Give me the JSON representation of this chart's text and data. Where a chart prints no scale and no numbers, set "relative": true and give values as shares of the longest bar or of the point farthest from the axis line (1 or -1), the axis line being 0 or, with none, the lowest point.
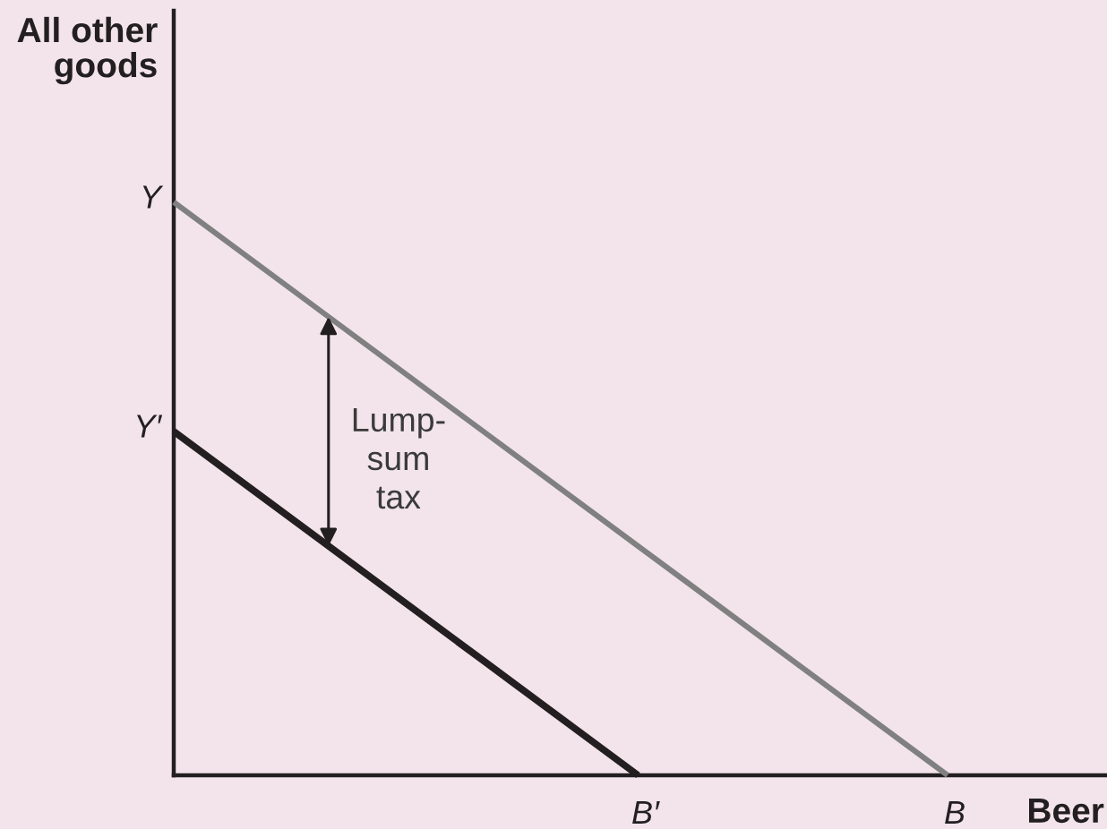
{
  "chart_data": {
    "type": "line",
    "relative": true,
    "xlabel": "Beer",
    "ylabel": "All other\ngoods",
    "line_style": "solid",
    "categories": [
      null,
      null,
      null,
      "B′",
      null,
      "B"
    ],
    "series": [
      {
        "name": "Y",
        "color": "#808080",
        "values": [
          1,
          0.8,
          0.6,
          0.4,
          0.2,
          0
        ]
      },
      {
        "name": "Y′",
        "color": "#231f20",
        "values": [
          0.6,
          0.4,
          0.2,
          0,
          null,
          null
        ]
      }
    ],
    "annotations": [
      "Lump-\nsum\ntax"
    ]
  }
}
